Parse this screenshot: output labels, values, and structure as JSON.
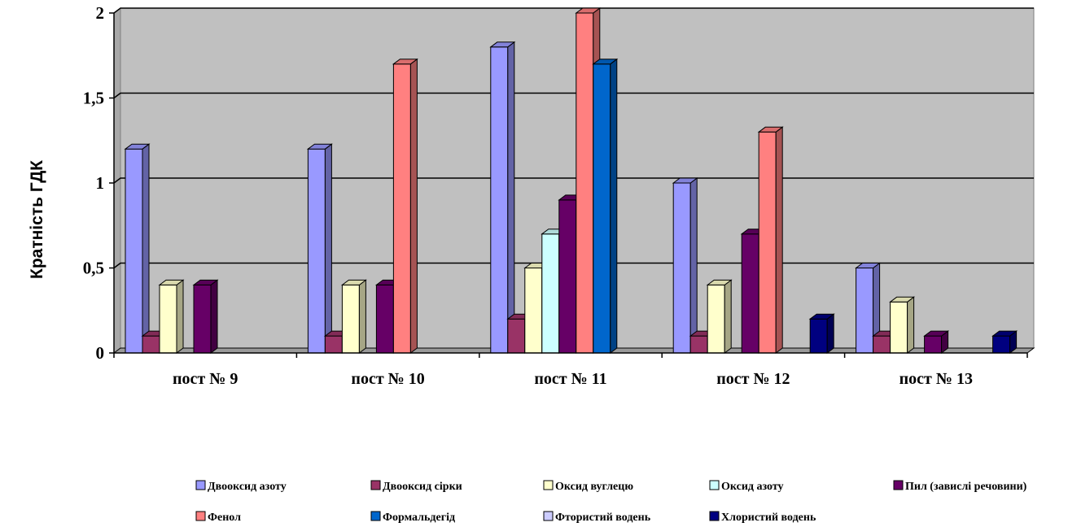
{
  "chart_data": {
    "type": "bar",
    "ylabel": "Кратність ГДК",
    "ylim": [
      0,
      2
    ],
    "yticks": [
      "0",
      "0,5",
      "1",
      "1,5",
      "2"
    ],
    "yticks_values": [
      0,
      0.5,
      1,
      1.5,
      2
    ],
    "categories": [
      "пост № 9",
      "пост № 10",
      "пост № 11",
      "пост № 12",
      "пост № 13"
    ],
    "grid": true,
    "legend_position": "bottom",
    "series": [
      {
        "name": "Двооксид азоту",
        "color": "#9999ff",
        "values": [
          1.2,
          1.2,
          1.8,
          1.0,
          0.5
        ]
      },
      {
        "name": "Двооксид сірки",
        "color": "#993366",
        "values": [
          0.1,
          0.1,
          0.2,
          0.1,
          0.1
        ]
      },
      {
        "name": "Оксид вуглецю",
        "color": "#ffffcc",
        "values": [
          0.4,
          0.4,
          0.5,
          0.4,
          0.3
        ]
      },
      {
        "name": "Оксид азоту",
        "color": "#ccffff",
        "values": [
          0,
          0,
          0.7,
          0,
          0
        ]
      },
      {
        "name": "Пил (завислі речовини)",
        "color": "#660066",
        "values": [
          0.4,
          0.4,
          0.9,
          0.7,
          0.1
        ]
      },
      {
        "name": "Фенол",
        "color": "#ff8080",
        "values": [
          0,
          1.7,
          2.0,
          1.3,
          0
        ]
      },
      {
        "name": "Формальдегід",
        "color": "#0066cc",
        "values": [
          0,
          0,
          1.7,
          0,
          0
        ]
      },
      {
        "name": "Фтористий водень",
        "color": "#ccccff",
        "values": [
          0,
          0,
          0,
          0,
          0
        ]
      },
      {
        "name": "Хлористий водень",
        "color": "#000080",
        "values": [
          0,
          0,
          0,
          0.2,
          0.1
        ]
      }
    ]
  }
}
